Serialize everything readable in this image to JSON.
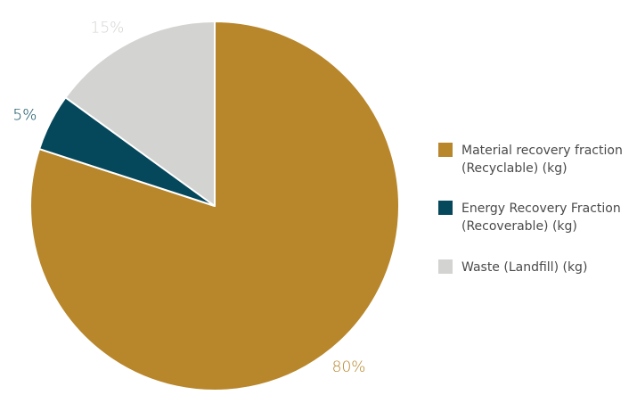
{
  "chart_data": {
    "type": "pie",
    "slices": [
      {
        "label_lines": [
          "Material recovery fraction",
          "(Recyclable) (kg)"
        ],
        "value": 80,
        "pct_text": "80%",
        "color": "#b8862b"
      },
      {
        "label_lines": [
          "Energy Recovery Fraction",
          "(Recoverable) (kg)"
        ],
        "value": 5,
        "pct_text": "5%",
        "color": "#05475b"
      },
      {
        "label_lines": [
          "Waste (Landfill) (kg)"
        ],
        "value": 15,
        "pct_text": "15%",
        "color": "#d3d3d1"
      }
    ],
    "start_at": "top",
    "direction": "clockwise",
    "legend_position": "right",
    "data_labels": "outside"
  }
}
